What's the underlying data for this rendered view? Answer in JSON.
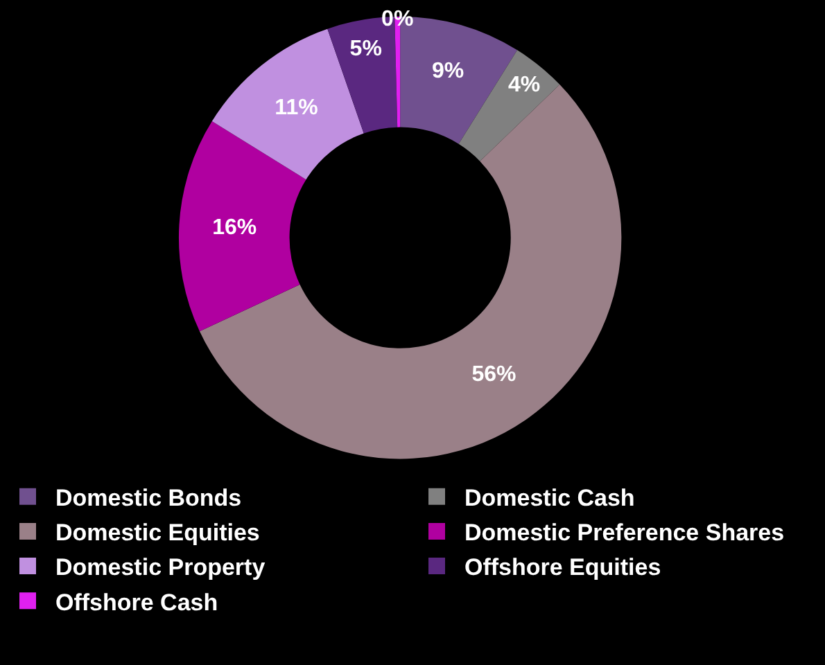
{
  "chart_data": {
    "type": "donut",
    "categories": [
      "Domestic Bonds",
      "Domestic Cash",
      "Domestic Equities",
      "Domestic Preference Shares",
      "Domestic Property",
      "Offshore Equities",
      "Offshore Cash"
    ],
    "values": [
      9,
      4,
      56,
      16,
      11,
      5,
      0.4
    ],
    "value_labels": [
      "9%",
      "4%",
      "56%",
      "16%",
      "11%",
      "5%",
      "0%"
    ],
    "colors": [
      "#70508f",
      "#808080",
      "#9a8088",
      "#b000a0",
      "#c090e0",
      "#5a2880",
      "#e020f0"
    ],
    "legend": "bottom"
  }
}
